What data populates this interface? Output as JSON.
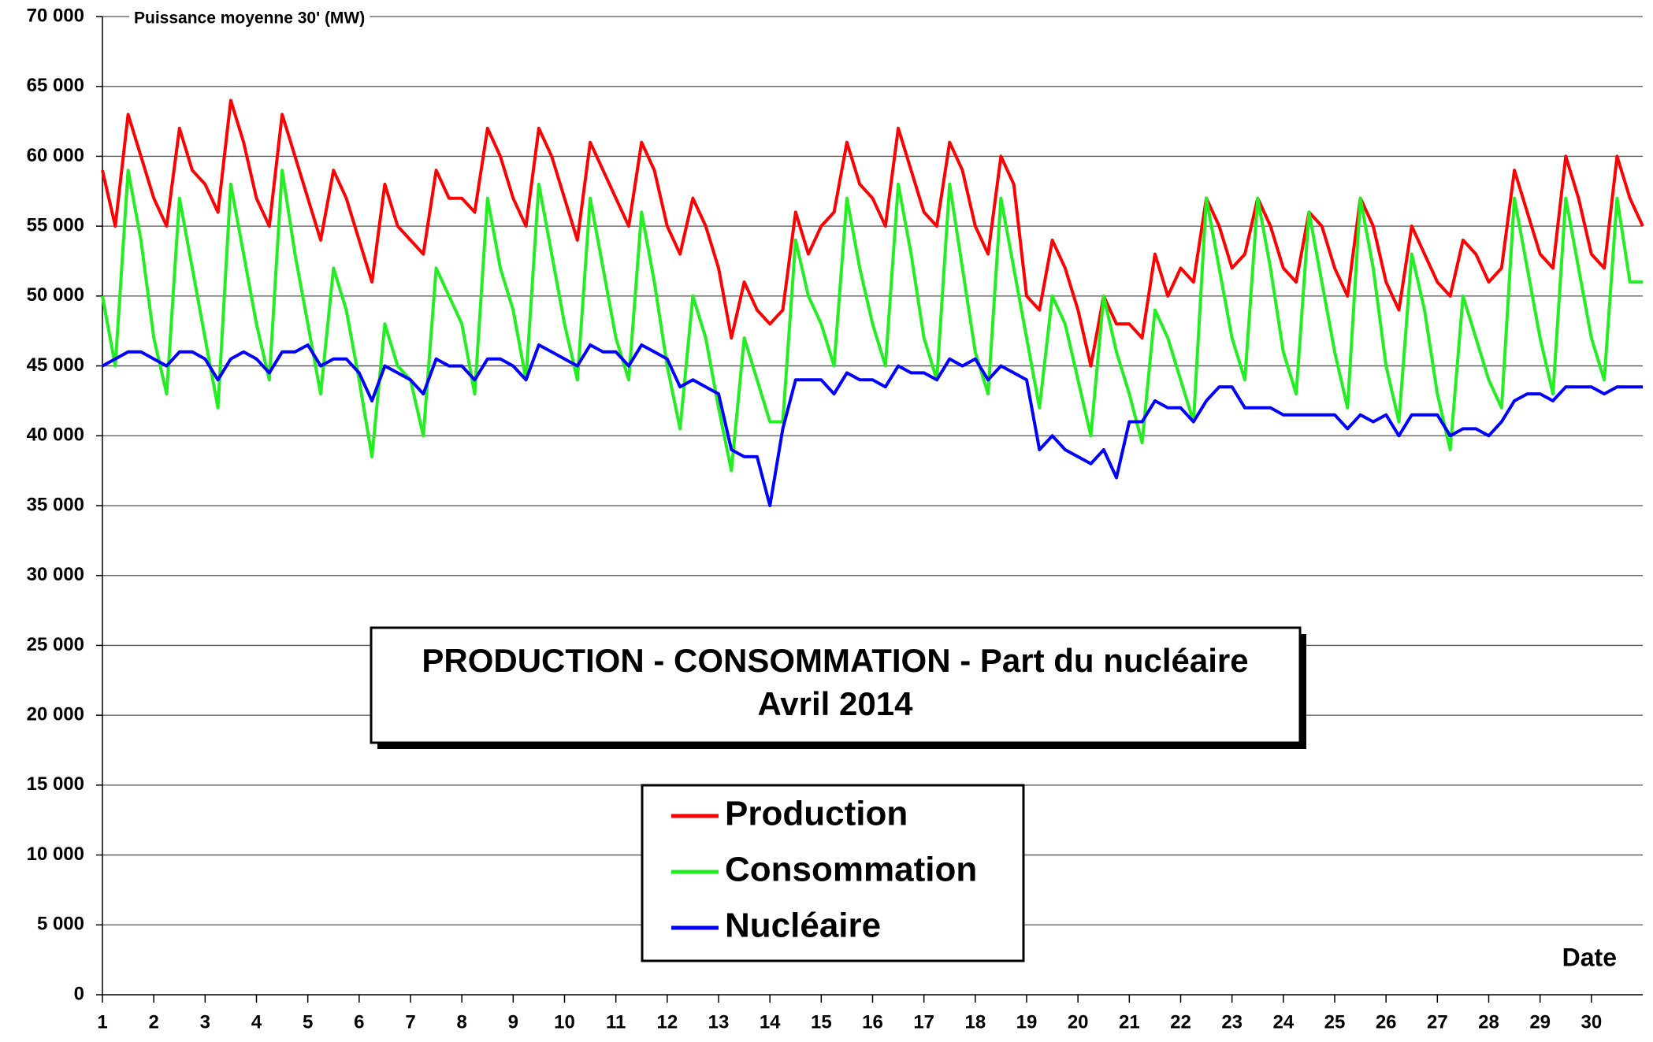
{
  "chart_data": {
    "type": "line",
    "title": "PRODUCTION - CONSOMMATION - Part du nucléaire",
    "subtitle": "Avril 2014",
    "y_label": "Puissance moyenne 30' (MW)",
    "x_label": "Date",
    "x": [
      1,
      1.25,
      1.5,
      1.75,
      2,
      2.25,
      2.5,
      2.75,
      3,
      3.25,
      3.5,
      3.75,
      4,
      4.25,
      4.5,
      4.75,
      5,
      5.25,
      5.5,
      5.75,
      6,
      6.25,
      6.5,
      6.75,
      7,
      7.25,
      7.5,
      7.75,
      8,
      8.25,
      8.5,
      8.75,
      9,
      9.25,
      9.5,
      9.75,
      10,
      10.25,
      10.5,
      10.75,
      11,
      11.25,
      11.5,
      11.75,
      12,
      12.25,
      12.5,
      12.75,
      13,
      13.25,
      13.5,
      13.75,
      14,
      14.25,
      14.5,
      14.75,
      15,
      15.25,
      15.5,
      15.75,
      16,
      16.25,
      16.5,
      16.75,
      17,
      17.25,
      17.5,
      17.75,
      18,
      18.25,
      18.5,
      18.75,
      19,
      19.25,
      19.5,
      19.75,
      20,
      20.25,
      20.5,
      20.75,
      21,
      21.25,
      21.5,
      21.75,
      22,
      22.25,
      22.5,
      22.75,
      23,
      23.25,
      23.5,
      23.75,
      24,
      24.25,
      24.5,
      24.75,
      25,
      25.25,
      25.5,
      25.75,
      26,
      26.25,
      26.5,
      26.75,
      27,
      27.25,
      27.5,
      27.75,
      28,
      28.25,
      28.5,
      28.75,
      29,
      29.25,
      29.5,
      29.75,
      30,
      30.25,
      30.5,
      30.75,
      31
    ],
    "series": [
      {
        "name": "Production",
        "color": "#ff0000",
        "values": [
          59000,
          55000,
          63000,
          60000,
          57000,
          55000,
          62000,
          59000,
          58000,
          56000,
          64000,
          61000,
          57000,
          55000,
          63000,
          60000,
          57000,
          54000,
          59000,
          57000,
          54000,
          51000,
          58000,
          55000,
          54000,
          53000,
          59000,
          57000,
          57000,
          56000,
          62000,
          60000,
          57000,
          55000,
          62000,
          60000,
          57000,
          54000,
          61000,
          59000,
          57000,
          55000,
          61000,
          59000,
          55000,
          53000,
          57000,
          55000,
          52000,
          47000,
          51000,
          49000,
          48000,
          49000,
          56000,
          53000,
          55000,
          56000,
          61000,
          58000,
          57000,
          55000,
          62000,
          59000,
          56000,
          55000,
          61000,
          59000,
          55000,
          53000,
          60000,
          58000,
          50000,
          49000,
          54000,
          52000,
          49000,
          45000,
          50000,
          48000,
          48000,
          47000,
          53000,
          50000,
          52000,
          51000,
          57000,
          55000,
          52000,
          53000,
          57000,
          55000,
          52000,
          51000,
          56000,
          55000,
          52000,
          50000,
          57000,
          55000,
          51000,
          49000,
          55000,
          53000,
          51000,
          50000,
          54000,
          53000,
          51000,
          52000,
          59000,
          56000,
          53000,
          52000,
          60000,
          57000,
          53000,
          52000,
          60000,
          57000,
          55000
        ]
      },
      {
        "name": "Consommation",
        "color": "#22ee22",
        "values": [
          50000,
          45000,
          59000,
          54000,
          47000,
          43000,
          57000,
          52000,
          47000,
          42000,
          58000,
          53000,
          48000,
          44000,
          59000,
          53000,
          48000,
          43000,
          52000,
          49000,
          44000,
          38500,
          48000,
          45000,
          44000,
          40000,
          52000,
          50000,
          48000,
          43000,
          57000,
          52000,
          49000,
          44000,
          58000,
          53000,
          48000,
          44000,
          57000,
          52000,
          47000,
          44000,
          56000,
          51000,
          45000,
          40500,
          50000,
          47000,
          42000,
          37500,
          47000,
          44000,
          41000,
          41000,
          54000,
          50000,
          48000,
          45000,
          57000,
          52000,
          48000,
          45000,
          58000,
          53000,
          47000,
          44000,
          58000,
          52000,
          46000,
          43000,
          57000,
          52000,
          47000,
          42000,
          50000,
          48000,
          44000,
          40000,
          50000,
          46000,
          43000,
          39500,
          49000,
          47000,
          44000,
          41000,
          57000,
          52000,
          47000,
          44000,
          57000,
          52000,
          46000,
          43000,
          56000,
          51000,
          46000,
          42000,
          57000,
          52000,
          45000,
          41000,
          53000,
          49000,
          43000,
          39000,
          50000,
          47000,
          44000,
          42000,
          57000,
          52000,
          47000,
          43000,
          57000,
          52000,
          47000,
          44000,
          57000,
          51000,
          51000
        ]
      },
      {
        "name": "Nucléaire",
        "color": "#0000ff",
        "values": [
          45000,
          45500,
          46000,
          46000,
          45500,
          45000,
          46000,
          46000,
          45500,
          44000,
          45500,
          46000,
          45500,
          44500,
          46000,
          46000,
          46500,
          45000,
          45500,
          45500,
          44500,
          42500,
          45000,
          44500,
          44000,
          43000,
          45500,
          45000,
          45000,
          44000,
          45500,
          45500,
          45000,
          44000,
          46500,
          46000,
          45500,
          45000,
          46500,
          46000,
          46000,
          45000,
          46500,
          46000,
          45500,
          43500,
          44000,
          43500,
          43000,
          39000,
          38500,
          38500,
          35000,
          40500,
          44000,
          44000,
          44000,
          43000,
          44500,
          44000,
          44000,
          43500,
          45000,
          44500,
          44500,
          44000,
          45500,
          45000,
          45500,
          44000,
          45000,
          44500,
          44000,
          39000,
          40000,
          39000,
          38500,
          38000,
          39000,
          37000,
          41000,
          41000,
          42500,
          42000,
          42000,
          41000,
          42500,
          43500,
          43500,
          42000,
          42000,
          42000,
          41500,
          41500,
          41500,
          41500,
          41500,
          40500,
          41500,
          41000,
          41500,
          40000,
          41500,
          41500,
          41500,
          40000,
          40500,
          40500,
          40000,
          41000,
          42500,
          43000,
          43000,
          42500,
          43500,
          43500,
          43500,
          43000,
          43500,
          43500,
          43500
        ]
      }
    ],
    "xlim": [
      1,
      31
    ],
    "xticks": [
      1,
      2,
      3,
      4,
      5,
      6,
      7,
      8,
      9,
      10,
      11,
      12,
      13,
      14,
      15,
      16,
      17,
      18,
      19,
      20,
      21,
      22,
      23,
      24,
      25,
      26,
      27,
      28,
      29,
      30
    ],
    "ylim": [
      0,
      70000
    ],
    "yticks": [
      0,
      {
        "value": 5000,
        "label": "5 000"
      },
      {
        "value": 10000,
        "label": "10 000"
      },
      {
        "value": 15000,
        "label": "15 000"
      },
      {
        "value": 20000,
        "label": "20 000"
      },
      {
        "value": 25000,
        "label": "25 000"
      },
      {
        "value": 30000,
        "label": "30 000"
      },
      {
        "value": 35000,
        "label": "35 000"
      },
      {
        "value": 40000,
        "label": "40 000"
      },
      {
        "value": 45000,
        "label": "45 000"
      },
      {
        "value": 50000,
        "label": "50 000"
      },
      {
        "value": 55000,
        "label": "55 000"
      },
      {
        "value": 60000,
        "label": "60 000"
      },
      {
        "value": 65000,
        "label": "65 000"
      },
      {
        "value": 70000,
        "label": "70 000"
      }
    ],
    "grid": true
  }
}
